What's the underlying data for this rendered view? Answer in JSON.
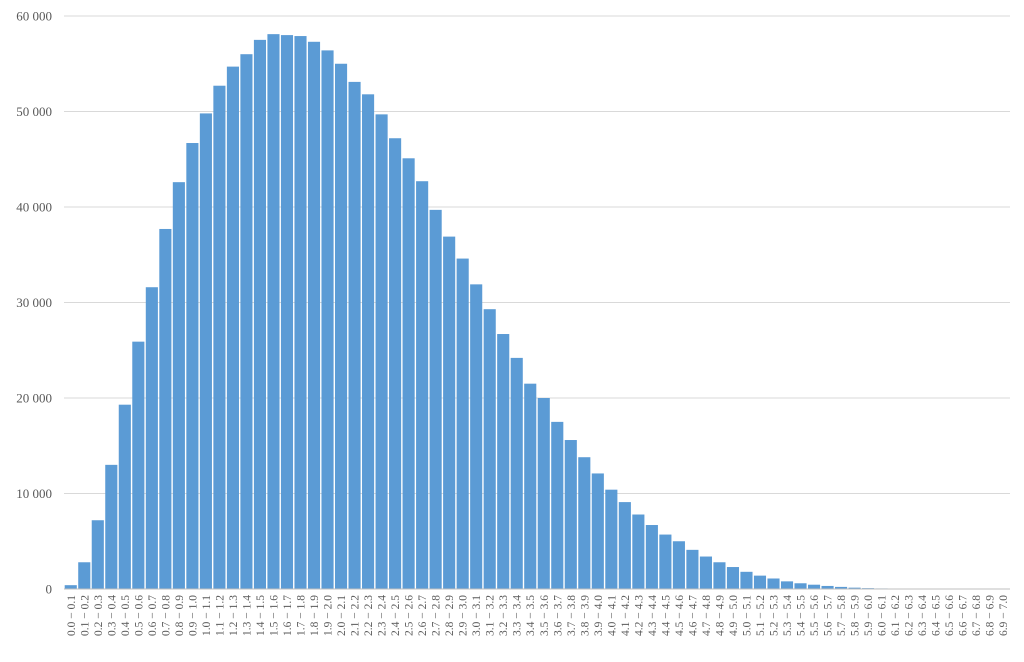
{
  "chart_data": {
    "type": "bar",
    "title": "",
    "xlabel": "",
    "ylabel": "",
    "ylim": [
      0,
      60000
    ],
    "yticks": [
      0,
      10000,
      20000,
      30000,
      40000,
      50000,
      60000
    ],
    "ytick_labels": [
      "0",
      "10 000",
      "20 000",
      "30 000",
      "40 000",
      "50 000",
      "60 000"
    ],
    "grid": "horizontal",
    "legend": "none",
    "bar_color": "#5b9bd5",
    "categories": [
      "0.0 − 0.1",
      "0.1 − 0.2",
      "0.2 − 0.3",
      "0.3 − 0.4",
      "0.4 − 0.5",
      "0.5 − 0.6",
      "0.6 − 0.7",
      "0.7 − 0.8",
      "0.8 − 0.9",
      "0.9 − 1.0",
      "1.0 − 1.1",
      "1.1 − 1.2",
      "1.2 − 1.3",
      "1.3 − 1.4",
      "1.4 − 1.5",
      "1.5 − 1.6",
      "1.6 − 1.7",
      "1.7 − 1.8",
      "1.8 − 1.9",
      "1.9 − 2.0",
      "2.0 − 2.1",
      "2.1 − 2.2",
      "2.2 − 2.3",
      "2.3 − 2.4",
      "2.4 − 2.5",
      "2.5 − 2.6",
      "2.6 − 2.7",
      "2.7 − 2.8",
      "2.8 − 2.9",
      "2.9 − 3.0",
      "3.0 − 3.1",
      "3.1 − 3.2",
      "3.2 − 3.3",
      "3.3 − 3.4",
      "3.4 − 3.5",
      "3.5 − 3.6",
      "3.6 − 3.7",
      "3.7 − 3.8",
      "3.8 − 3.9",
      "3.9 − 4.0",
      "4.0 − 4.1",
      "4.1 − 4.2",
      "4.2 − 4.3",
      "4.3 − 4.4",
      "4.4 − 4.5",
      "4.5 − 4.6",
      "4.6 − 4.7",
      "4.7 − 4.8",
      "4.8 − 4.9",
      "4.9 − 5.0",
      "5.0 − 5.1",
      "5.1 − 5.2",
      "5.2 − 5.3",
      "5.3 − 5.4",
      "5.4 − 5.5",
      "5.5 − 5.6",
      "5.6 − 5.7",
      "5.7 − 5.8",
      "5.8 − 5.9",
      "5.9 − 6.0",
      "6.0 − 6.1",
      "6.1 − 6.2",
      "6.2 − 6.3",
      "6.3 − 6.4",
      "6.4 − 6.5",
      "6.5 − 6.6",
      "6.6 − 6.7",
      "6.7 − 6.8",
      "6.8 − 6.9",
      "6.9 − 7.0"
    ],
    "values": [
      400,
      2800,
      7200,
      13000,
      19300,
      25900,
      31600,
      37700,
      42600,
      46700,
      49800,
      52700,
      54700,
      56000,
      57500,
      58100,
      58000,
      57900,
      57300,
      56400,
      55000,
      53100,
      51800,
      49700,
      47200,
      45100,
      42700,
      39700,
      36900,
      34600,
      31900,
      29300,
      26700,
      24200,
      21500,
      20000,
      17500,
      15600,
      13800,
      12100,
      10400,
      9100,
      7800,
      6700,
      5700,
      5000,
      4100,
      3400,
      2800,
      2300,
      1800,
      1400,
      1100,
      800,
      600,
      450,
      320,
      220,
      140,
      90,
      60,
      40,
      25,
      15,
      10,
      6,
      4,
      2,
      1,
      1
    ]
  }
}
